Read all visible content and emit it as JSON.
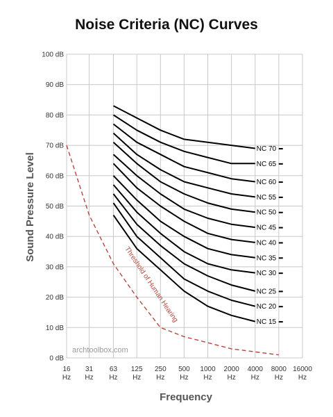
{
  "chart_data": {
    "type": "line",
    "title": "Noise Criteria (NC) Curves",
    "xlabel": "Frequency",
    "ylabel": "Sound Pressure Level",
    "x_ticks": [
      {
        "value": "16",
        "unit": "Hz"
      },
      {
        "value": "31",
        "unit": "Hz"
      },
      {
        "value": "63",
        "unit": "Hz"
      },
      {
        "value": "125",
        "unit": "Hz"
      },
      {
        "value": "250",
        "unit": "Hz"
      },
      {
        "value": "500",
        "unit": "Hz"
      },
      {
        "value": "1000",
        "unit": "Hz"
      },
      {
        "value": "2000",
        "unit": "Hz"
      },
      {
        "value": "4000",
        "unit": "Hz"
      },
      {
        "value": "8000",
        "unit": "Hz"
      },
      {
        "value": "16000",
        "unit": "Hz"
      }
    ],
    "y_ticks": [
      "0 dB",
      "10 dB",
      "20 dB",
      "30 dB",
      "40 dB",
      "50 dB",
      "60 dB",
      "70 dB",
      "80 dB",
      "90 dB",
      "100 dB"
    ],
    "ylim": [
      0,
      100
    ],
    "grid": true,
    "series_x": [
      63,
      125,
      250,
      500,
      1000,
      2000,
      4000
    ],
    "series": [
      {
        "name": "NC 70",
        "values": [
          83,
          79,
          75,
          72,
          71,
          70,
          69
        ]
      },
      {
        "name": "NC 65",
        "values": [
          80,
          75,
          71,
          68,
          66,
          64,
          64
        ]
      },
      {
        "name": "NC 60",
        "values": [
          77,
          71,
          67,
          63,
          61,
          59,
          58
        ]
      },
      {
        "name": "NC 55",
        "values": [
          74,
          67,
          62,
          58,
          56,
          54,
          53
        ]
      },
      {
        "name": "NC 50",
        "values": [
          71,
          64,
          58,
          54,
          51,
          49,
          48
        ]
      },
      {
        "name": "NC 45",
        "values": [
          67,
          60,
          54,
          49,
          46,
          44,
          43
        ]
      },
      {
        "name": "NC 40",
        "values": [
          64,
          56,
          50,
          45,
          41,
          39,
          38
        ]
      },
      {
        "name": "NC 35",
        "values": [
          60,
          52,
          45,
          40,
          36,
          34,
          33
        ]
      },
      {
        "name": "NC 30",
        "values": [
          57,
          48,
          41,
          35,
          31,
          29,
          28
        ]
      },
      {
        "name": "NC 25",
        "values": [
          54,
          44,
          37,
          31,
          27,
          24,
          22
        ]
      },
      {
        "name": "NC 20",
        "values": [
          51,
          40,
          33,
          26,
          22,
          19,
          17
        ]
      },
      {
        "name": "NC 15",
        "values": [
          47,
          36,
          29,
          22,
          17,
          14,
          12
        ]
      }
    ],
    "threshold": {
      "label": "Threshold of Human Hearing",
      "x": [
        16,
        31,
        63,
        125,
        250,
        500,
        1000,
        2000,
        4000,
        8000
      ],
      "values": [
        70,
        47,
        31,
        20,
        10,
        7,
        5,
        3,
        2,
        1
      ],
      "color": "#b5473a"
    },
    "watermark": "archtoolbox.com"
  }
}
